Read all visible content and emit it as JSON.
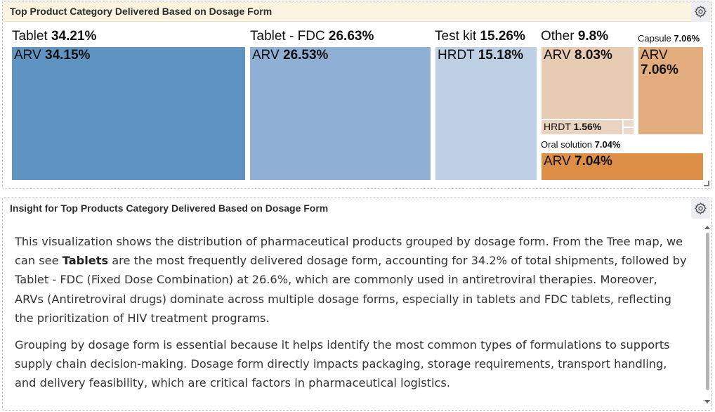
{
  "panel1": {
    "title": "Top Product Category Delivered Based on Dosage Form",
    "gear_icon": "gear-icon"
  },
  "panel2": {
    "title": "Insight for Top Products Category Delivered Based on Dosage Form",
    "gear_icon": "gear-icon"
  },
  "treemap": {
    "groups": [
      {
        "name": "Tablet",
        "pct": "34.21%",
        "child": "ARV",
        "child_pct": "34.15%"
      },
      {
        "name": "Tablet - FDC",
        "pct": "26.63%",
        "child": "ARV",
        "child_pct": "26.53%"
      },
      {
        "name": "Test kit",
        "pct": "15.26%",
        "child": "HRDT",
        "child_pct": "15.18%"
      },
      {
        "name": "Other",
        "pct": "9.8%",
        "child": "ARV",
        "child_pct": "8.03%",
        "child2": "HRDT",
        "child2_pct": "1.56%"
      },
      {
        "name": "Capsule",
        "pct": "7.06%",
        "child": "ARV",
        "child_pct": "7.06%"
      },
      {
        "name": "Oral solution",
        "pct": "7.04%",
        "child": "ARV",
        "child_pct": "7.04%"
      }
    ],
    "colors": {
      "tablet": "#5f93c2",
      "tablet_fdc": "#8fb0d4",
      "test_kit": "#bfd0e5",
      "other": "#e7cbb2",
      "capsule": "#e3ac7c",
      "oral_solution": "#dd8f48"
    }
  },
  "insight": {
    "p1_a": "This visualization shows the distribution of pharmaceutical products grouped by dosage form. From the Tree map, we can see ",
    "p1_bold": "Tablets",
    "p1_b": " are the most frequently delivered dosage form, accounting for 34.2% of total shipments, followed by Tablet - FDC (Fixed Dose Combination) at 26.6%, which are commonly used in antiretroviral therapies. Moreover, ARVs (Antiretroviral drugs) dominate across multiple dosage forms, especially in tablets and FDC tablets, reflecting the prioritization of HIV treatment programs.",
    "p2": "Grouping by dosage form is essential because it helps identify the most common types of formulations to supports supply chain decision-making. Dosage form directly impacts packaging, storage requirements, transport handling, and delivery feasibility, which are critical factors in pharmaceutical logistics."
  }
}
